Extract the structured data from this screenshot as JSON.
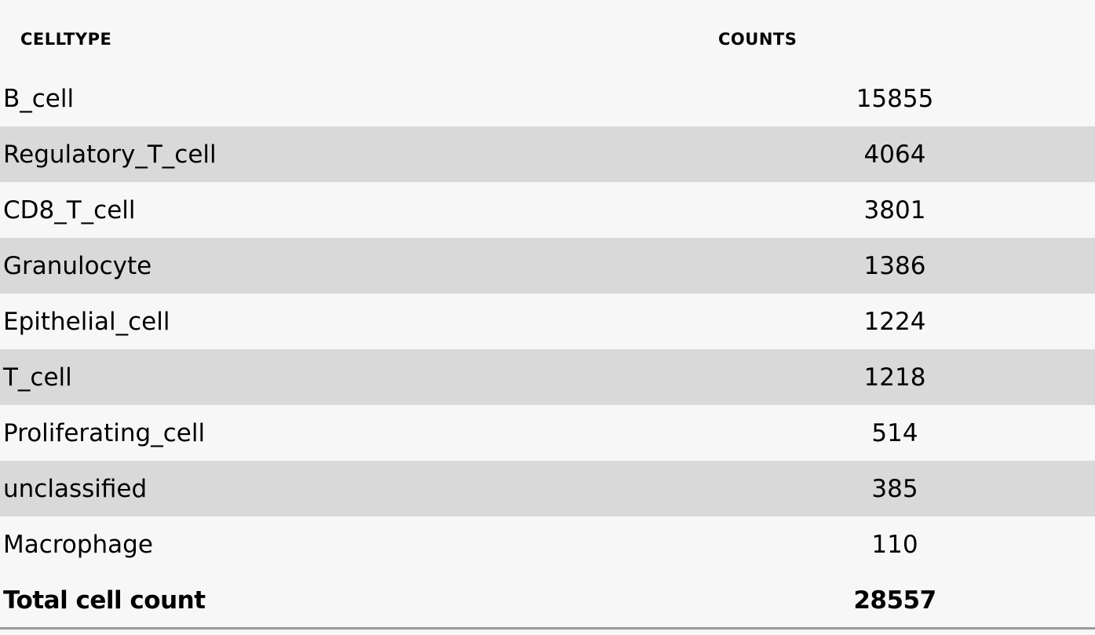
{
  "table": {
    "header": [
      "CELLTYPE",
      "COUNTS"
    ],
    "rows": [
      [
        "B_cell",
        15855
      ],
      [
        "Regulatory_T_cell",
        4064
      ],
      [
        "CD8_T_cell",
        3801
      ],
      [
        "Granulocyte",
        1386
      ],
      [
        "Epithelial_cell",
        1224
      ],
      [
        "T_cell",
        1218
      ],
      [
        "Proliferating_cell",
        514
      ],
      [
        "unclassified",
        385
      ],
      [
        "Macrophage",
        110
      ]
    ],
    "total": [
      "Total cell count",
      28557
    ]
  }
}
